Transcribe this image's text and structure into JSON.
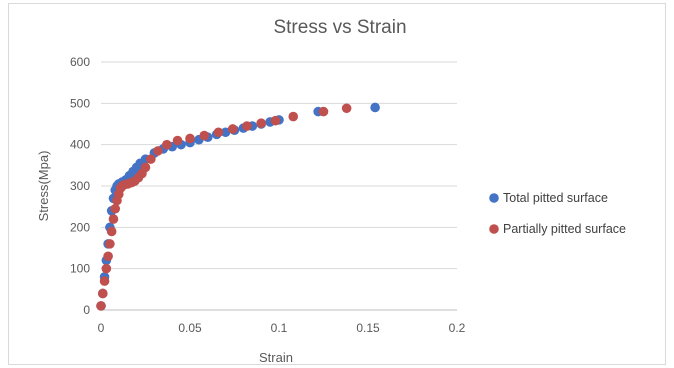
{
  "chart_data": {
    "type": "scatter",
    "title": "Stress vs Strain",
    "xlabel": "Strain",
    "ylabel": "Stress(Mpa)",
    "xlim": [
      0,
      0.2
    ],
    "ylim": [
      0,
      600
    ],
    "x_ticks": [
      "0",
      "0.05",
      "0.1",
      "0.15",
      "0.2"
    ],
    "y_ticks": [
      "0",
      "100",
      "200",
      "300",
      "400",
      "500",
      "600"
    ],
    "grid": "horizontal",
    "legend_position": "right",
    "series": [
      {
        "name": "Total pitted surface",
        "color": "#4472c4",
        "points": [
          [
            0,
            10
          ],
          [
            0.001,
            40
          ],
          [
            0.002,
            80
          ],
          [
            0.003,
            120
          ],
          [
            0.004,
            160
          ],
          [
            0.005,
            200
          ],
          [
            0.006,
            240
          ],
          [
            0.007,
            270
          ],
          [
            0.008,
            290
          ],
          [
            0.009,
            300
          ],
          [
            0.01,
            305
          ],
          [
            0.012,
            310
          ],
          [
            0.014,
            315
          ],
          [
            0.016,
            325
          ],
          [
            0.018,
            335
          ],
          [
            0.02,
            345
          ],
          [
            0.022,
            355
          ],
          [
            0.025,
            365
          ],
          [
            0.03,
            380
          ],
          [
            0.035,
            390
          ],
          [
            0.04,
            395
          ],
          [
            0.045,
            400
          ],
          [
            0.05,
            405
          ],
          [
            0.055,
            412
          ],
          [
            0.06,
            418
          ],
          [
            0.065,
            425
          ],
          [
            0.07,
            430
          ],
          [
            0.075,
            435
          ],
          [
            0.08,
            440
          ],
          [
            0.085,
            445
          ],
          [
            0.09,
            450
          ],
          [
            0.095,
            455
          ],
          [
            0.1,
            460
          ],
          [
            0.122,
            480
          ],
          [
            0.154,
            490
          ]
        ]
      },
      {
        "name": "Partially pitted surface",
        "color": "#c0504d",
        "points": [
          [
            0,
            10
          ],
          [
            0.001,
            40
          ],
          [
            0.002,
            70
          ],
          [
            0.003,
            100
          ],
          [
            0.004,
            130
          ],
          [
            0.005,
            160
          ],
          [
            0.006,
            190
          ],
          [
            0.007,
            220
          ],
          [
            0.008,
            245
          ],
          [
            0.009,
            265
          ],
          [
            0.01,
            280
          ],
          [
            0.011,
            295
          ],
          [
            0.012,
            300
          ],
          [
            0.013,
            303
          ],
          [
            0.015,
            305
          ],
          [
            0.017,
            308
          ],
          [
            0.019,
            312
          ],
          [
            0.021,
            320
          ],
          [
            0.023,
            330
          ],
          [
            0.025,
            345
          ],
          [
            0.028,
            365
          ],
          [
            0.032,
            385
          ],
          [
            0.037,
            400
          ],
          [
            0.043,
            410
          ],
          [
            0.05,
            415
          ],
          [
            0.058,
            422
          ],
          [
            0.066,
            430
          ],
          [
            0.074,
            438
          ],
          [
            0.082,
            445
          ],
          [
            0.09,
            452
          ],
          [
            0.098,
            458
          ],
          [
            0.108,
            468
          ],
          [
            0.125,
            480
          ],
          [
            0.138,
            488
          ]
        ]
      }
    ]
  }
}
